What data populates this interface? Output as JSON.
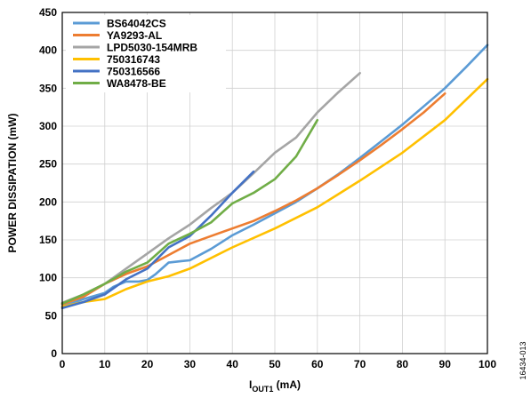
{
  "chart_data": {
    "type": "line",
    "xlabel_main": "I",
    "xlabel_sub": "OUT1",
    "xlabel_unit": " (mA)",
    "ylabel": "POWER DISSIPATION (mW)",
    "xlim": [
      0,
      100
    ],
    "ylim": [
      0,
      450
    ],
    "xticks": [
      "0",
      "10",
      "20",
      "30",
      "40",
      "50",
      "60",
      "70",
      "80",
      "90",
      "100"
    ],
    "yticks": [
      "0",
      "50",
      "100",
      "150",
      "200",
      "250",
      "300",
      "350",
      "400",
      "450"
    ],
    "grid": true,
    "legend_position": "top-left",
    "figure_id": "16434-013",
    "series": [
      {
        "name": "BS64042CS",
        "color": "#5b9bd5",
        "x": [
          0,
          5,
          10,
          12,
          15,
          18,
          20,
          22,
          25,
          28,
          30,
          35,
          40,
          45,
          50,
          55,
          60,
          65,
          70,
          75,
          80,
          85,
          90,
          95,
          100
        ],
        "y": [
          62,
          72,
          80,
          88,
          95,
          95,
          97,
          105,
          120,
          122,
          123,
          138,
          156,
          170,
          185,
          200,
          218,
          237,
          258,
          280,
          302,
          326,
          350,
          378,
          407
        ]
      },
      {
        "name": "YA9293-AL",
        "color": "#ed7d31",
        "x": [
          0,
          5,
          10,
          15,
          20,
          25,
          30,
          35,
          40,
          45,
          50,
          55,
          60,
          65,
          70,
          75,
          80,
          85,
          90
        ],
        "y": [
          65,
          75,
          92,
          105,
          115,
          130,
          145,
          155,
          165,
          175,
          188,
          202,
          218,
          236,
          255,
          275,
          296,
          318,
          343
        ]
      },
      {
        "name": "LPD5030-154MRB",
        "color": "#a5a5a5",
        "x": [
          0,
          5,
          10,
          15,
          20,
          25,
          30,
          35,
          40,
          45,
          50,
          55,
          60,
          65,
          70
        ],
        "y": [
          67,
          78,
          92,
          112,
          132,
          152,
          170,
          192,
          212,
          238,
          265,
          285,
          318,
          345,
          370
        ]
      },
      {
        "name": "750316743",
        "color": "#ffc000",
        "x": [
          0,
          5,
          10,
          15,
          20,
          25,
          30,
          40,
          50,
          60,
          70,
          80,
          90,
          100
        ],
        "y": [
          62,
          68,
          72,
          85,
          95,
          102,
          112,
          140,
          165,
          193,
          228,
          265,
          308,
          362
        ]
      },
      {
        "name": "750316566",
        "color": "#4472c4",
        "x": [
          0,
          5,
          10,
          15,
          20,
          25,
          30,
          35,
          40,
          45
        ],
        "y": [
          60,
          68,
          78,
          98,
          112,
          140,
          155,
          182,
          212,
          240
        ]
      },
      {
        "name": "WA8478-BE",
        "color": "#70ad47",
        "x": [
          0,
          5,
          10,
          15,
          20,
          25,
          30,
          35,
          40,
          45,
          50,
          55,
          60
        ],
        "y": [
          66,
          78,
          92,
          108,
          120,
          145,
          158,
          173,
          198,
          212,
          230,
          260,
          308
        ]
      }
    ]
  }
}
